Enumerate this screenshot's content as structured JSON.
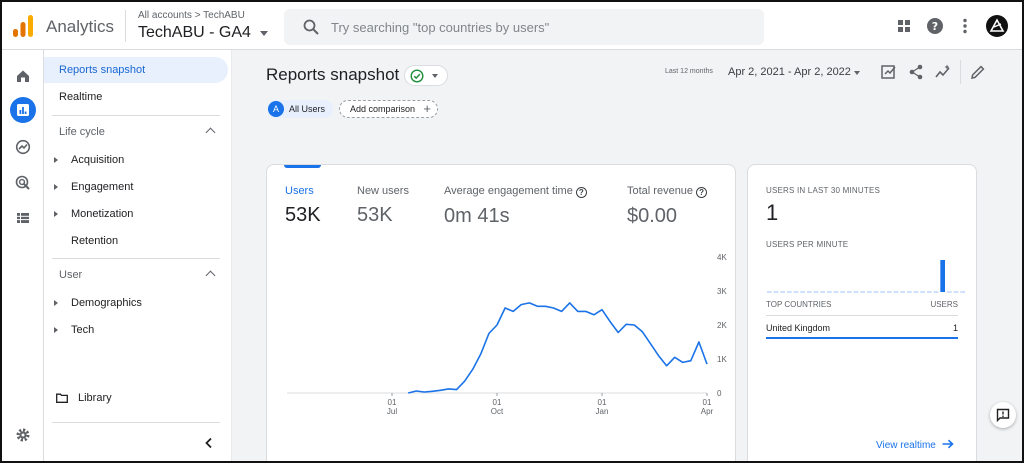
{
  "app": {
    "name": "Analytics",
    "breadcrumb": "All accounts > TechABU",
    "property": "TechABU - GA4"
  },
  "search": {
    "placeholder": "Try searching \"top countries by users\""
  },
  "topbar_icons": [
    "apps-icon",
    "help-icon",
    "more-vert-icon",
    "avatar"
  ],
  "rail": {
    "items": [
      "home-icon",
      "reports-icon",
      "explore-icon",
      "advertising-icon",
      "configure-icon",
      "admin-gear-icon"
    ],
    "active": "reports-icon"
  },
  "nav": {
    "snapshot": "Reports snapshot",
    "realtime": "Realtime",
    "lifecycle": {
      "label": "Life cycle",
      "items": [
        "Acquisition",
        "Engagement",
        "Monetization",
        "Retention"
      ]
    },
    "user": {
      "label": "User",
      "items": [
        "Demographics",
        "Tech"
      ]
    },
    "library": "Library"
  },
  "header": {
    "title": "Reports snapshot",
    "date_prefix": "Last 12 months",
    "date_range": "Apr 2, 2021 - Apr 2, 2022",
    "comparison_badge": "A",
    "comparison_label": "All Users",
    "add_comparison": "Add comparison",
    "toolbar_icons": [
      "customize-report-icon",
      "share-icon",
      "insights-icon",
      "edit-icon"
    ]
  },
  "metrics": [
    {
      "label": "Users",
      "value": "53K",
      "active": true
    },
    {
      "label": "New users",
      "value": "53K"
    },
    {
      "label": "Average engagement time",
      "value": "0m 41s",
      "help": true
    },
    {
      "label": "Total revenue",
      "value": "$0.00",
      "help": true
    }
  ],
  "chart_data": {
    "type": "line",
    "y_ticks": [
      "4K",
      "3K",
      "2K",
      "1K",
      "0"
    ],
    "ylim": [
      0,
      4000
    ],
    "x_ticks": [
      {
        "line1": "01",
        "line2": "Jul",
        "week": 13
      },
      {
        "line1": "01",
        "line2": "Oct",
        "week": 26
      },
      {
        "line1": "01",
        "line2": "Jan",
        "week": 39
      },
      {
        "line1": "01",
        "line2": "Apr",
        "week": 52
      }
    ],
    "series": [
      {
        "color": "#1a73e8",
        "x": [
          15,
          16,
          17,
          18,
          19,
          20,
          21,
          22,
          23,
          24,
          25,
          26,
          27,
          28,
          29,
          30,
          31,
          32,
          33,
          34,
          35,
          36,
          37,
          38,
          39,
          40,
          41,
          42,
          43,
          44,
          45,
          46,
          47,
          48,
          49,
          50,
          51,
          52
        ],
        "y": [
          0,
          60,
          30,
          50,
          80,
          120,
          100,
          350,
          700,
          1150,
          1750,
          2000,
          2500,
          2400,
          2600,
          2650,
          2550,
          2550,
          2500,
          2400,
          2650,
          2400,
          2400,
          2300,
          2450,
          2100,
          1780,
          2020,
          2000,
          1800,
          1450,
          1100,
          800,
          1050,
          900,
          950,
          1500,
          850
        ]
      }
    ]
  },
  "realtime": {
    "users_label": "USERS IN LAST 30 MINUTES",
    "users_value": "1",
    "per_minute_label": "USERS PER MINUTE",
    "per_minute": [
      0,
      0,
      0,
      0,
      0,
      0,
      0,
      0,
      0,
      0,
      0,
      0,
      0,
      0,
      0,
      0,
      0,
      0,
      0,
      0,
      0,
      0,
      0,
      0,
      0,
      0,
      1,
      0,
      0,
      0
    ],
    "countries_col": "TOP COUNTRIES",
    "users_col": "USERS",
    "rows": [
      {
        "country": "United Kingdom",
        "users": "1"
      }
    ],
    "link": "View realtime"
  }
}
